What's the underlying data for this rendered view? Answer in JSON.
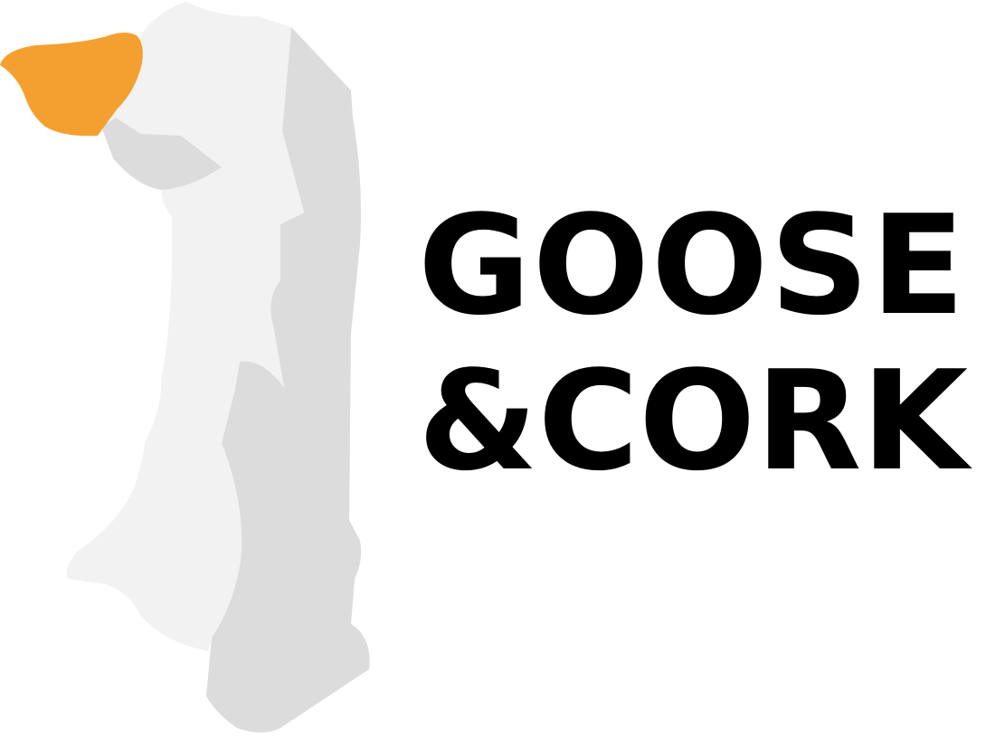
{
  "brand": {
    "wordmark_line1": "GOOSE",
    "wordmark_line2": "&CORK"
  },
  "logo": {
    "icon": "goose-icon",
    "colors": {
      "beak": "#F4A030",
      "body_light": "#F2F2F2",
      "body_shadow": "#DCDCDC",
      "text": "#000000"
    }
  }
}
